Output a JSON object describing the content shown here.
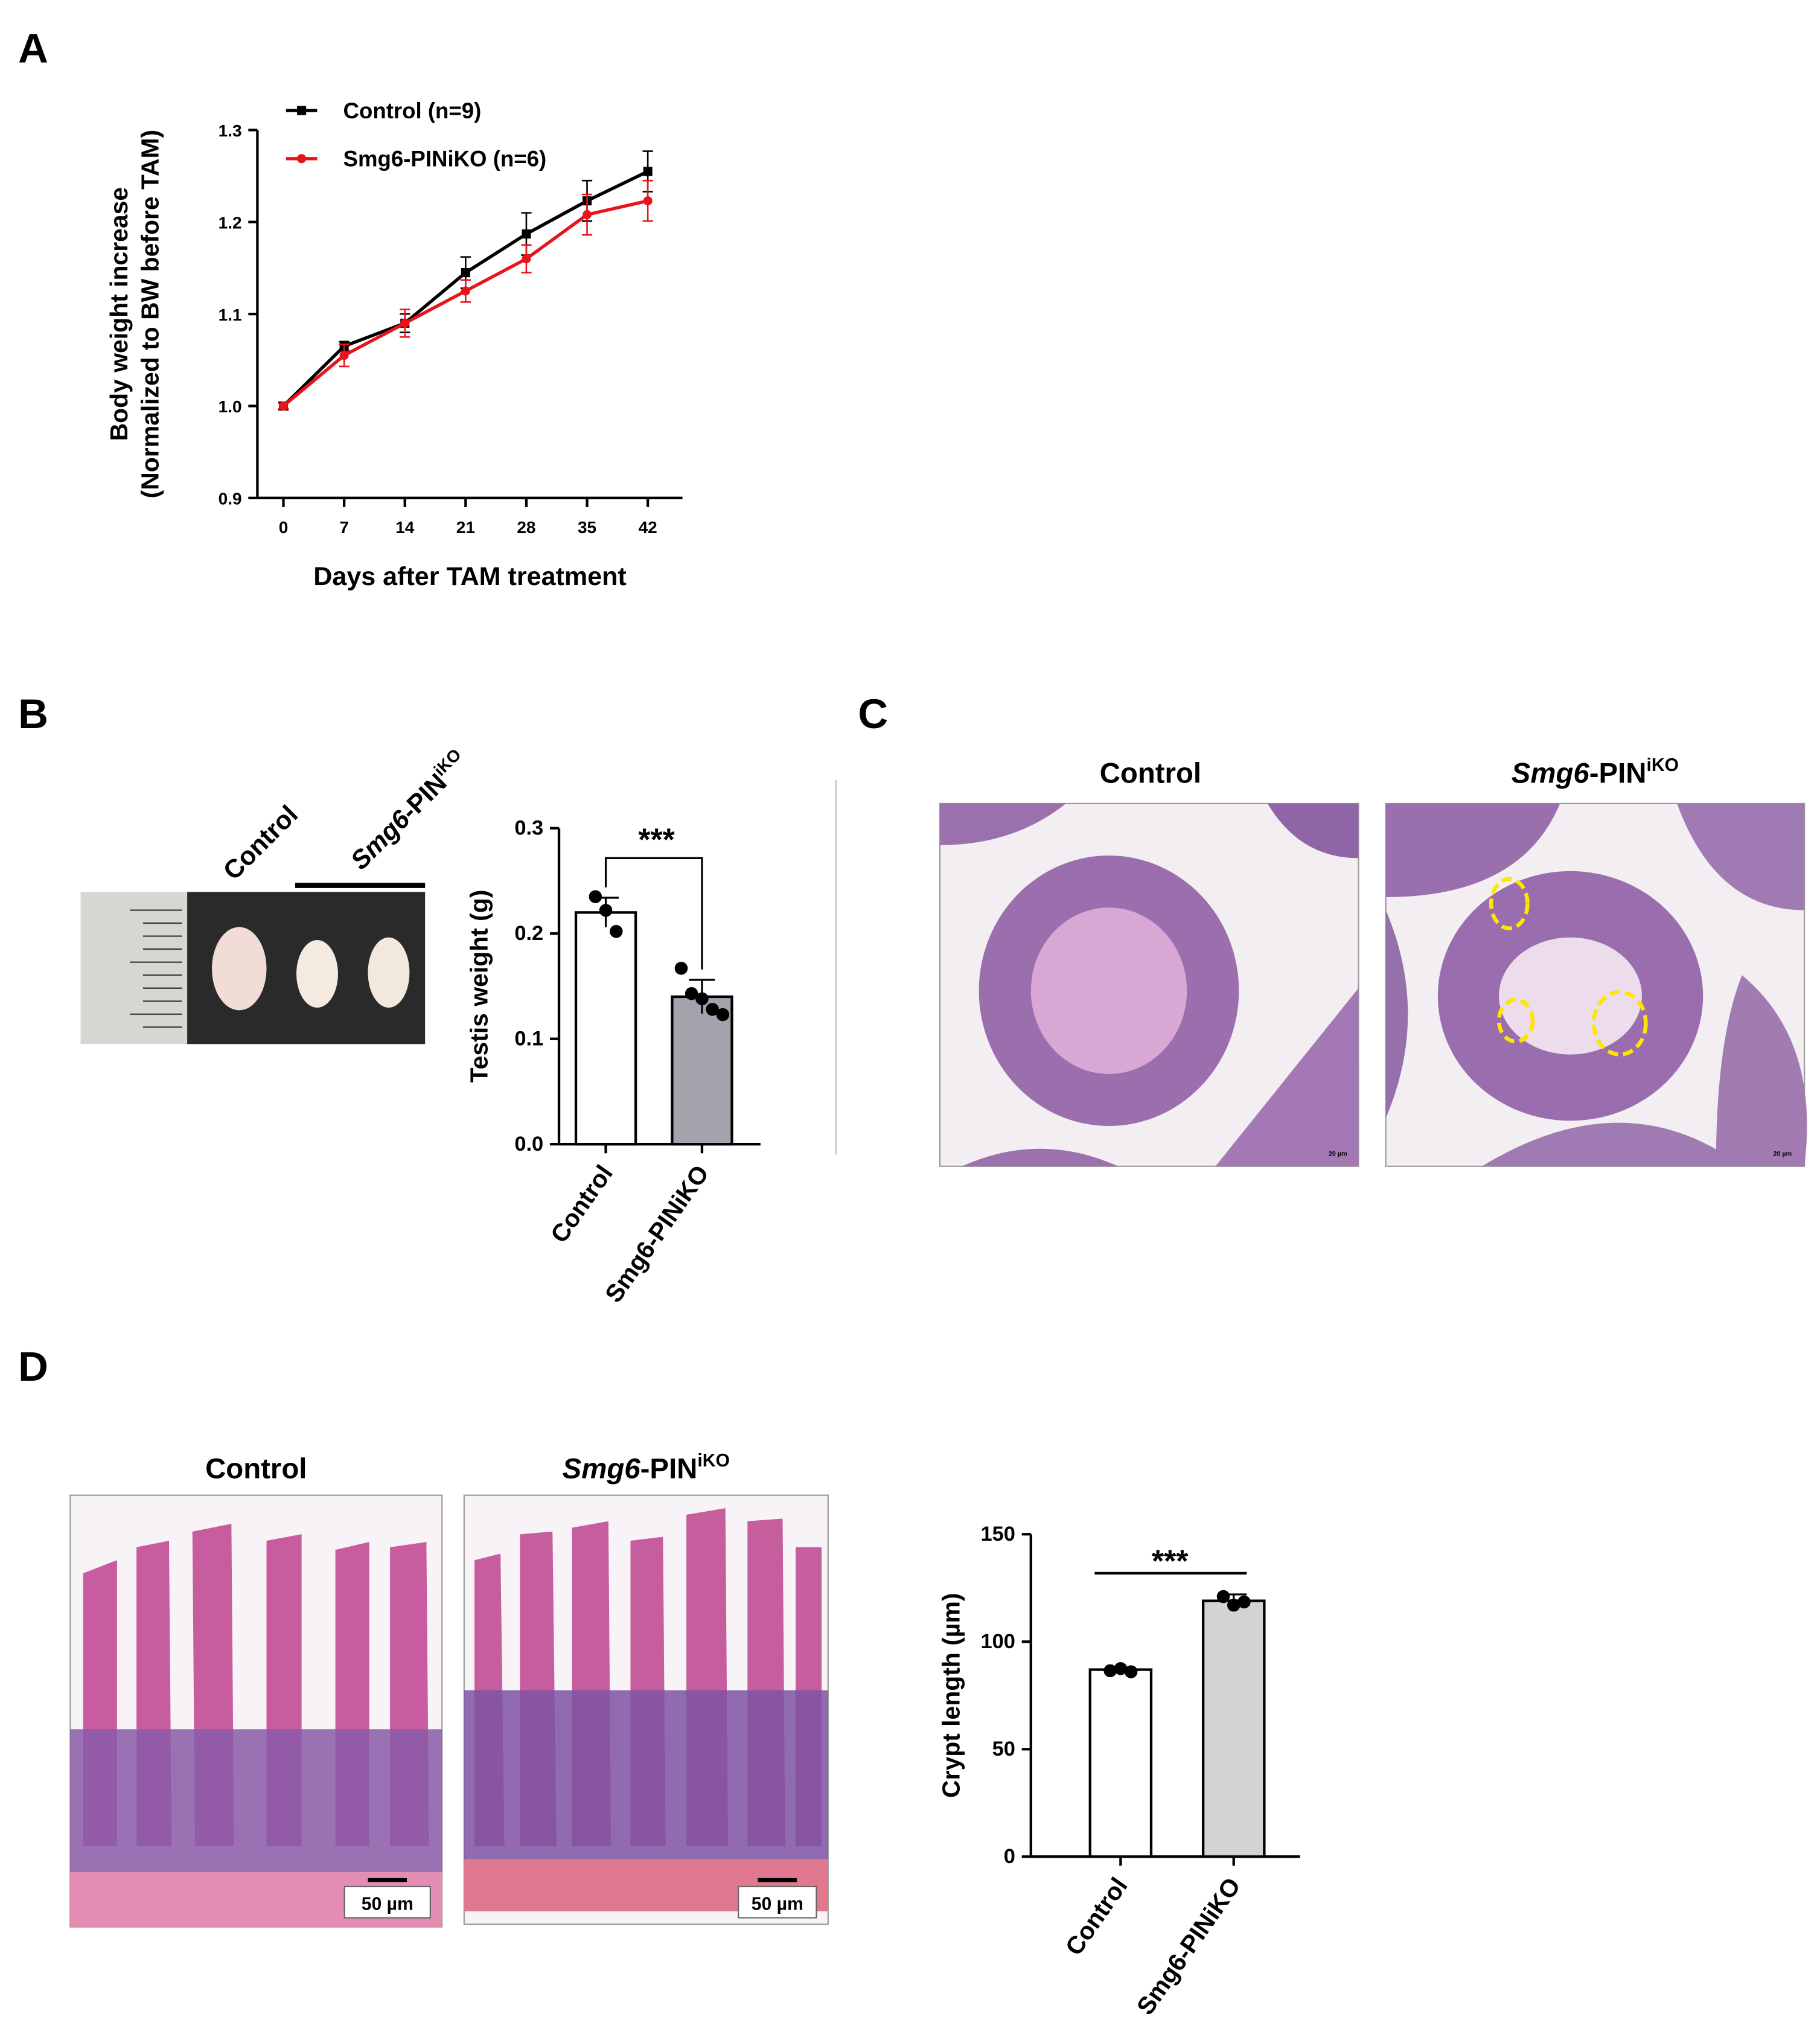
{
  "panel_labels": [
    "A",
    "B",
    "C",
    "D"
  ],
  "control_label": "Control",
  "ko_label": {
    "italic": "Smg6",
    "main": "-PIN",
    "sup": "iKO"
  },
  "scale_bars": {
    "testis": "20 µm",
    "intestine": "50 µm"
  },
  "chart_data": [
    {
      "type": "line",
      "x": [
        0,
        7,
        14,
        21,
        28,
        35,
        42
      ],
      "xlim": [
        -3,
        46
      ],
      "xticks": [
        0,
        7,
        14,
        21,
        28,
        35,
        42
      ],
      "ylim": [
        0.9,
        1.3
      ],
      "yticks": [
        0.9,
        {
          "value": 1.0,
          "label": "1.0"
        },
        1.1,
        1.2,
        1.3
      ],
      "x_label": "Days after TAM treatment",
      "y_label": [
        "Body weight increase",
        "(Normalized to BW before TAM)"
      ],
      "legend": "upper left",
      "series": [
        {
          "name": "Control (n=9)",
          "color": "#000000",
          "marker": "square",
          "values": [
            1.0,
            1.065,
            1.09,
            1.145,
            1.187,
            1.223,
            1.255
          ],
          "errors": [
            0.004,
            0.005,
            0.01,
            0.017,
            0.023,
            0.022,
            0.022
          ]
        },
        {
          "name": "Smg6-PINiKO (n=6)",
          "color": "#e8141b",
          "marker": "circle",
          "values": [
            1.0,
            1.055,
            1.09,
            1.125,
            1.16,
            1.208,
            1.223
          ],
          "errors": [
            0.003,
            0.012,
            0.015,
            0.012,
            0.015,
            0.022,
            0.022
          ]
        }
      ]
    },
    {
      "type": "bar",
      "categories": [
        "Control",
        "Smg6-PINiKO"
      ],
      "values": [
        0.22,
        0.14
      ],
      "errors": [
        0.014,
        0.016
      ],
      "points": [
        [
          0.235,
          0.222,
          0.202
        ],
        [
          0.167,
          0.143,
          0.138,
          0.128,
          0.123
        ]
      ],
      "colors": [
        "#ffffff",
        "#a3a3ab"
      ],
      "ylim": [
        0,
        0.3
      ],
      "yticks": [
        {
          "value": 0,
          "label": "0.0"
        },
        0.1,
        0.2,
        0.3
      ],
      "y_label": "Testis weight (g)",
      "significance": "***"
    },
    {
      "type": "bar",
      "categories": [
        "Control",
        "Smg6-PINiKO"
      ],
      "values": [
        87,
        119
      ],
      "errors": [
        1,
        3
      ],
      "points": [
        [
          86.5,
          87.5,
          86
        ],
        [
          121,
          117,
          118.5
        ]
      ],
      "colors": [
        "#ffffff",
        "#d3d3d3"
      ],
      "ylim": [
        0,
        150
      ],
      "yticks": [
        0,
        50,
        100,
        150
      ],
      "y_label": "Crypt length (µm)",
      "significance": "***"
    }
  ]
}
